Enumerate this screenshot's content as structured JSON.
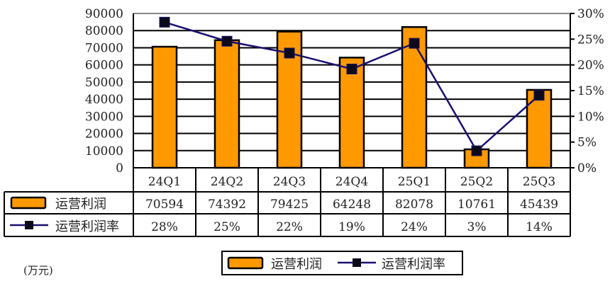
{
  "chart_data": {
    "type": "bar",
    "categories": [
      "24Q1",
      "24Q2",
      "24Q3",
      "24Q4",
      "25Q1",
      "25Q2",
      "25Q3"
    ],
    "series": [
      {
        "name": "运营利润",
        "type": "bar",
        "axis": "left",
        "values": [
          70594,
          74392,
          79425,
          64248,
          82078,
          10761,
          45439
        ],
        "color": "#FF9900"
      },
      {
        "name": "运营利润率",
        "type": "line",
        "axis": "right",
        "values": [
          28.3,
          24.6,
          22.3,
          19.2,
          24.2,
          3.3,
          14.1
        ],
        "labels": [
          "28%",
          "25%",
          "22%",
          "19%",
          "24%",
          "3%",
          "14%"
        ],
        "color": "#1A1070"
      }
    ],
    "left_axis": {
      "ylim": [
        0,
        90000
      ],
      "ticks": [
        "0",
        "10000",
        "20000",
        "30000",
        "40000",
        "50000",
        "60000",
        "70000",
        "80000",
        "90000"
      ]
    },
    "right_axis": {
      "ylim": [
        0,
        30
      ],
      "ticks": [
        "0%",
        "5%",
        "10%",
        "15%",
        "20%",
        "25%",
        "30%"
      ]
    },
    "unit_label": "(万元)",
    "legend": {
      "placement": "bottom-center",
      "entries": [
        "运营利润",
        "运营利润率"
      ]
    },
    "grid": true
  }
}
